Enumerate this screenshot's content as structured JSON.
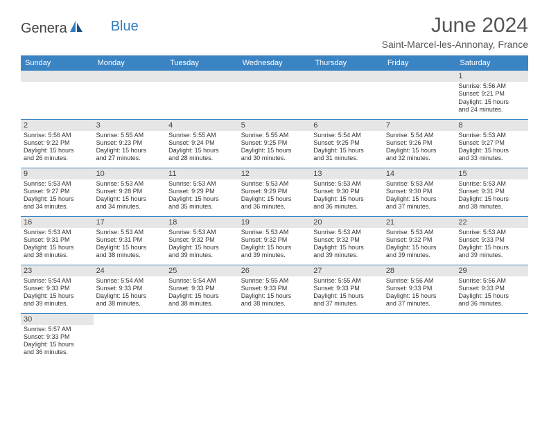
{
  "logo": {
    "text1": "Genera",
    "text2": "Blue"
  },
  "title": "June 2024",
  "location": "Saint-Marcel-les-Annonay, France",
  "colors": {
    "header_bg": "#3b84c4",
    "header_text": "#ffffff",
    "daynum_bg": "#e6e6e6",
    "cell_border": "#3b84c4",
    "text": "#333333",
    "logo_blue": "#2f7bbf"
  },
  "weekdays": [
    "Sunday",
    "Monday",
    "Tuesday",
    "Wednesday",
    "Thursday",
    "Friday",
    "Saturday"
  ],
  "weeks": [
    [
      null,
      null,
      null,
      null,
      null,
      null,
      {
        "n": "1",
        "sr": "Sunrise: 5:56 AM",
        "ss": "Sunset: 9:21 PM",
        "d1": "Daylight: 15 hours",
        "d2": "and 24 minutes."
      }
    ],
    [
      {
        "n": "2",
        "sr": "Sunrise: 5:56 AM",
        "ss": "Sunset: 9:22 PM",
        "d1": "Daylight: 15 hours",
        "d2": "and 26 minutes."
      },
      {
        "n": "3",
        "sr": "Sunrise: 5:55 AM",
        "ss": "Sunset: 9:23 PM",
        "d1": "Daylight: 15 hours",
        "d2": "and 27 minutes."
      },
      {
        "n": "4",
        "sr": "Sunrise: 5:55 AM",
        "ss": "Sunset: 9:24 PM",
        "d1": "Daylight: 15 hours",
        "d2": "and 28 minutes."
      },
      {
        "n": "5",
        "sr": "Sunrise: 5:55 AM",
        "ss": "Sunset: 9:25 PM",
        "d1": "Daylight: 15 hours",
        "d2": "and 30 minutes."
      },
      {
        "n": "6",
        "sr": "Sunrise: 5:54 AM",
        "ss": "Sunset: 9:25 PM",
        "d1": "Daylight: 15 hours",
        "d2": "and 31 minutes."
      },
      {
        "n": "7",
        "sr": "Sunrise: 5:54 AM",
        "ss": "Sunset: 9:26 PM",
        "d1": "Daylight: 15 hours",
        "d2": "and 32 minutes."
      },
      {
        "n": "8",
        "sr": "Sunrise: 5:53 AM",
        "ss": "Sunset: 9:27 PM",
        "d1": "Daylight: 15 hours",
        "d2": "and 33 minutes."
      }
    ],
    [
      {
        "n": "9",
        "sr": "Sunrise: 5:53 AM",
        "ss": "Sunset: 9:27 PM",
        "d1": "Daylight: 15 hours",
        "d2": "and 34 minutes."
      },
      {
        "n": "10",
        "sr": "Sunrise: 5:53 AM",
        "ss": "Sunset: 9:28 PM",
        "d1": "Daylight: 15 hours",
        "d2": "and 34 minutes."
      },
      {
        "n": "11",
        "sr": "Sunrise: 5:53 AM",
        "ss": "Sunset: 9:29 PM",
        "d1": "Daylight: 15 hours",
        "d2": "and 35 minutes."
      },
      {
        "n": "12",
        "sr": "Sunrise: 5:53 AM",
        "ss": "Sunset: 9:29 PM",
        "d1": "Daylight: 15 hours",
        "d2": "and 36 minutes."
      },
      {
        "n": "13",
        "sr": "Sunrise: 5:53 AM",
        "ss": "Sunset: 9:30 PM",
        "d1": "Daylight: 15 hours",
        "d2": "and 36 minutes."
      },
      {
        "n": "14",
        "sr": "Sunrise: 5:53 AM",
        "ss": "Sunset: 9:30 PM",
        "d1": "Daylight: 15 hours",
        "d2": "and 37 minutes."
      },
      {
        "n": "15",
        "sr": "Sunrise: 5:53 AM",
        "ss": "Sunset: 9:31 PM",
        "d1": "Daylight: 15 hours",
        "d2": "and 38 minutes."
      }
    ],
    [
      {
        "n": "16",
        "sr": "Sunrise: 5:53 AM",
        "ss": "Sunset: 9:31 PM",
        "d1": "Daylight: 15 hours",
        "d2": "and 38 minutes."
      },
      {
        "n": "17",
        "sr": "Sunrise: 5:53 AM",
        "ss": "Sunset: 9:31 PM",
        "d1": "Daylight: 15 hours",
        "d2": "and 38 minutes."
      },
      {
        "n": "18",
        "sr": "Sunrise: 5:53 AM",
        "ss": "Sunset: 9:32 PM",
        "d1": "Daylight: 15 hours",
        "d2": "and 39 minutes."
      },
      {
        "n": "19",
        "sr": "Sunrise: 5:53 AM",
        "ss": "Sunset: 9:32 PM",
        "d1": "Daylight: 15 hours",
        "d2": "and 39 minutes."
      },
      {
        "n": "20",
        "sr": "Sunrise: 5:53 AM",
        "ss": "Sunset: 9:32 PM",
        "d1": "Daylight: 15 hours",
        "d2": "and 39 minutes."
      },
      {
        "n": "21",
        "sr": "Sunrise: 5:53 AM",
        "ss": "Sunset: 9:32 PM",
        "d1": "Daylight: 15 hours",
        "d2": "and 39 minutes."
      },
      {
        "n": "22",
        "sr": "Sunrise: 5:53 AM",
        "ss": "Sunset: 9:33 PM",
        "d1": "Daylight: 15 hours",
        "d2": "and 39 minutes."
      }
    ],
    [
      {
        "n": "23",
        "sr": "Sunrise: 5:54 AM",
        "ss": "Sunset: 9:33 PM",
        "d1": "Daylight: 15 hours",
        "d2": "and 39 minutes."
      },
      {
        "n": "24",
        "sr": "Sunrise: 5:54 AM",
        "ss": "Sunset: 9:33 PM",
        "d1": "Daylight: 15 hours",
        "d2": "and 38 minutes."
      },
      {
        "n": "25",
        "sr": "Sunrise: 5:54 AM",
        "ss": "Sunset: 9:33 PM",
        "d1": "Daylight: 15 hours",
        "d2": "and 38 minutes."
      },
      {
        "n": "26",
        "sr": "Sunrise: 5:55 AM",
        "ss": "Sunset: 9:33 PM",
        "d1": "Daylight: 15 hours",
        "d2": "and 38 minutes."
      },
      {
        "n": "27",
        "sr": "Sunrise: 5:55 AM",
        "ss": "Sunset: 9:33 PM",
        "d1": "Daylight: 15 hours",
        "d2": "and 37 minutes."
      },
      {
        "n": "28",
        "sr": "Sunrise: 5:56 AM",
        "ss": "Sunset: 9:33 PM",
        "d1": "Daylight: 15 hours",
        "d2": "and 37 minutes."
      },
      {
        "n": "29",
        "sr": "Sunrise: 5:56 AM",
        "ss": "Sunset: 9:33 PM",
        "d1": "Daylight: 15 hours",
        "d2": "and 36 minutes."
      }
    ],
    [
      {
        "n": "30",
        "sr": "Sunrise: 5:57 AM",
        "ss": "Sunset: 9:33 PM",
        "d1": "Daylight: 15 hours",
        "d2": "and 36 minutes."
      },
      null,
      null,
      null,
      null,
      null,
      null
    ]
  ]
}
